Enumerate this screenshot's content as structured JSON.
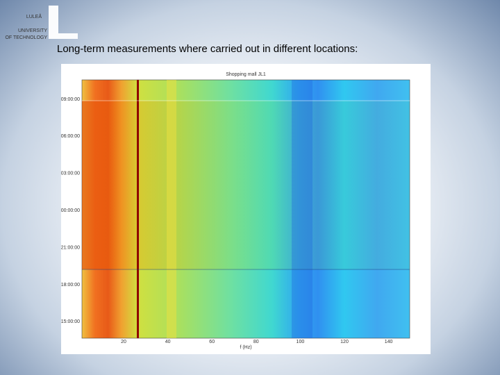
{
  "slide": {
    "heading": "Long-term measurements where carried out in different locations:"
  },
  "figure": {
    "title": "Shopping mall JL1",
    "y_ticks": [
      "09:00:00",
      "06:00:00",
      "03:00:00",
      "00:00:00",
      "21:00:00",
      "18:00:00",
      "15:00:00"
    ],
    "x_ticks": [
      "20",
      "40",
      "60",
      "80",
      "100",
      "120",
      "140"
    ],
    "x_label": "f (Hz)"
  },
  "logo": {
    "lines": [
      "LULEÅ",
      "UNIVERSITY",
      "OF TECHNOLOGY"
    ]
  }
}
